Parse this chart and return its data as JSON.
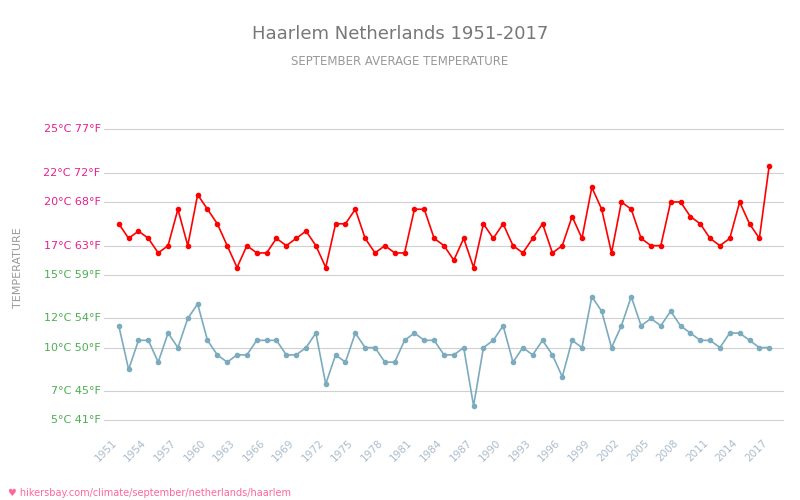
{
  "title": "Haarlem Netherlands 1951-2017",
  "subtitle": "SEPTEMBER AVERAGE TEMPERATURE",
  "ylabel": "TEMPERATURE",
  "url_text": "hikersbay.com/climate/september/netherlands/haarlem",
  "years": [
    1951,
    1952,
    1953,
    1954,
    1955,
    1956,
    1957,
    1958,
    1959,
    1960,
    1961,
    1962,
    1963,
    1964,
    1965,
    1966,
    1967,
    1968,
    1969,
    1970,
    1971,
    1972,
    1973,
    1974,
    1975,
    1976,
    1977,
    1978,
    1979,
    1980,
    1981,
    1982,
    1983,
    1984,
    1985,
    1986,
    1987,
    1988,
    1989,
    1990,
    1991,
    1992,
    1993,
    1994,
    1995,
    1996,
    1997,
    1998,
    1999,
    2000,
    2001,
    2002,
    2003,
    2004,
    2005,
    2006,
    2007,
    2008,
    2009,
    2010,
    2011,
    2012,
    2013,
    2014,
    2015,
    2016,
    2017
  ],
  "day_temps": [
    18.5,
    17.5,
    18.0,
    17.5,
    16.5,
    17.0,
    19.5,
    17.0,
    20.5,
    19.5,
    18.5,
    17.0,
    15.5,
    17.0,
    16.5,
    16.5,
    17.5,
    17.0,
    17.5,
    18.0,
    17.0,
    15.5,
    18.5,
    18.5,
    19.5,
    17.5,
    16.5,
    17.0,
    16.5,
    16.5,
    19.5,
    19.5,
    17.5,
    17.0,
    16.0,
    17.5,
    15.5,
    18.5,
    17.5,
    18.5,
    17.0,
    16.5,
    17.5,
    18.5,
    16.5,
    17.0,
    19.0,
    17.5,
    21.0,
    19.5,
    16.5,
    20.0,
    19.5,
    17.5,
    17.0,
    17.0,
    20.0,
    20.0,
    19.0,
    18.5,
    17.5,
    17.0,
    17.5,
    20.0,
    18.5,
    17.5,
    22.5
  ],
  "night_temps": [
    11.5,
    8.5,
    10.5,
    10.5,
    9.0,
    11.0,
    10.0,
    12.0,
    13.0,
    10.5,
    9.5,
    9.0,
    9.5,
    9.5,
    10.5,
    10.5,
    10.5,
    9.5,
    9.5,
    10.0,
    11.0,
    7.5,
    9.5,
    9.0,
    11.0,
    10.0,
    10.0,
    9.0,
    9.0,
    10.5,
    11.0,
    10.5,
    10.5,
    9.5,
    9.5,
    10.0,
    6.0,
    10.0,
    10.5,
    11.5,
    9.0,
    10.0,
    9.5,
    10.5,
    9.5,
    8.0,
    10.5,
    10.0,
    13.5,
    12.5,
    10.0,
    11.5,
    13.5,
    11.5,
    12.0,
    11.5,
    12.5,
    11.5,
    11.0,
    10.5,
    10.5,
    10.0,
    11.0,
    11.0,
    10.5,
    10.0,
    10.0
  ],
  "yticks_c": [
    5,
    7,
    10,
    12,
    15,
    17,
    20,
    22,
    25
  ],
  "yticks_f": [
    41,
    45,
    50,
    54,
    59,
    63,
    68,
    72,
    77
  ],
  "ylim": [
    4,
    27
  ],
  "day_color": "#ff0000",
  "night_color": "#7BABBE",
  "bg_color": "#ffffff",
  "grid_color": "#d0d0d0",
  "title_color": "#777777",
  "subtitle_color": "#999999",
  "ylabel_color": "#999999",
  "tick_label_color_pink": "#e91e8c",
  "tick_label_color_green": "#4caf50",
  "xtick_color": "#aabbcc",
  "url_color": "#ff6699",
  "xlim_left": 1949.5,
  "xlim_right": 2018.5
}
